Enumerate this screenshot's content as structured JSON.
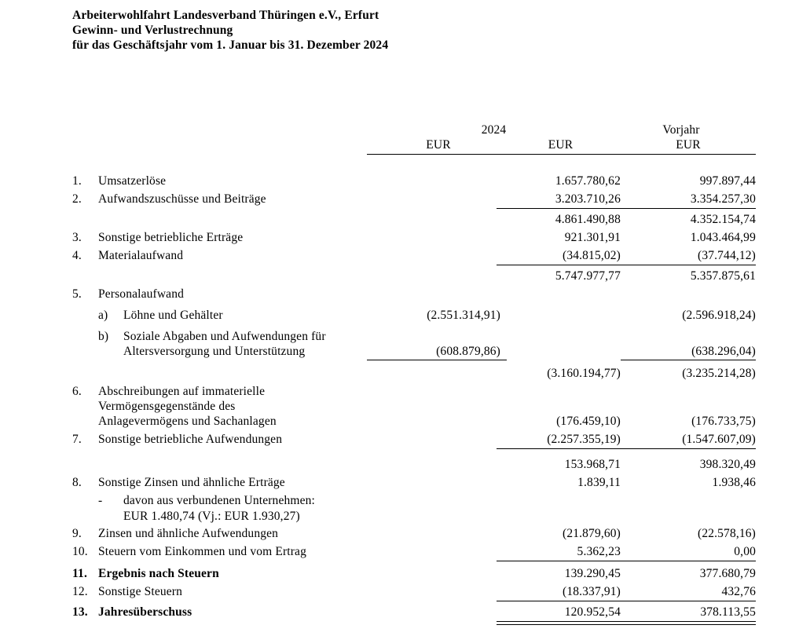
{
  "header": {
    "line1": "Arbeiterwohlfahrt Landesverband Thüringen e.V., Erfurt",
    "line2": "Gewinn- und Verlustrechnung",
    "line3": "für das Geschäftsjahr vom 1. Januar bis 31. Dezember 2024"
  },
  "columns": {
    "year_current": "2024",
    "year_prior": "Vorjahr",
    "currency1": "EUR",
    "currency2": "EUR",
    "currency3": "EUR"
  },
  "rows": {
    "r1": {
      "num": "1.",
      "label": "Umsatzerlöse",
      "c2": "1.657.780,62",
      "c3": "997.897,44"
    },
    "r2": {
      "num": "2.",
      "label": "Aufwandszuschüsse und Beiträge",
      "c2": "3.203.710,26",
      "c3": "3.354.257,30"
    },
    "sub1": {
      "c2": "4.861.490,88",
      "c3": "4.352.154,74"
    },
    "r3": {
      "num": "3.",
      "label": "Sonstige betriebliche Erträge",
      "c2": "921.301,91",
      "c3": "1.043.464,99"
    },
    "r4": {
      "num": "4.",
      "label": "Materialaufwand",
      "c2": "(34.815,02)",
      "c3": "(37.744,12)"
    },
    "sub2": {
      "c2": "5.747.977,77",
      "c3": "5.357.875,61"
    },
    "r5": {
      "num": "5.",
      "label": "Personalaufwand"
    },
    "r5a": {
      "letter": "a)",
      "label": "Löhne und Gehälter",
      "c1": "(2.551.314,91)",
      "c3": "(2.596.918,24)"
    },
    "r5b": {
      "letter": "b)",
      "label_line1": "Soziale Abgaben und Aufwendungen für",
      "label_line2": "Altersversorgung und Unterstützung",
      "c1": "(608.879,86)",
      "c3": "(638.296,04)"
    },
    "sub3": {
      "c2": "(3.160.194,77)",
      "c3": "(3.235.214,28)"
    },
    "r6": {
      "num": "6.",
      "label_line1": "Abschreibungen auf immaterielle",
      "label_line2": "Vermögensgegenstände des",
      "label_line3": "Anlagevermögens und Sachanlagen",
      "c2": "(176.459,10)",
      "c3": "(176.733,75)"
    },
    "r7": {
      "num": "7.",
      "label": "Sonstige betriebliche Aufwendungen",
      "c2": "(2.257.355,19)",
      "c3": "(1.547.607,09)"
    },
    "sub4": {
      "c2": "153.968,71",
      "c3": "398.320,49"
    },
    "r8": {
      "num": "8.",
      "label": "Sonstige Zinsen und ähnliche Erträge",
      "c2": "1.839,11",
      "c3": "1.938,46"
    },
    "r8a": {
      "dash": "-",
      "label": "davon aus verbundenen Unternehmen:"
    },
    "r8b": {
      "label": "EUR 1.480,74 (Vj.: EUR 1.930,27)"
    },
    "r9": {
      "num": "9.",
      "label": "Zinsen und ähnliche Aufwendungen",
      "c2": "(21.879,60)",
      "c3": "(22.578,16)"
    },
    "r10": {
      "num": "10.",
      "label": "Steuern vom Einkommen und vom Ertrag",
      "c2": "5.362,23",
      "c3": "0,00"
    },
    "r11": {
      "num": "11.",
      "label": "Ergebnis nach Steuern",
      "c2": "139.290,45",
      "c3": "377.680,79"
    },
    "r12": {
      "num": "12.",
      "label": "Sonstige Steuern",
      "c2": "(18.337,91)",
      "c3": "432,76"
    },
    "r13": {
      "num": "13.",
      "label": "Jahresüberschuss",
      "c2": "120.952,54",
      "c3": "378.113,55"
    }
  }
}
